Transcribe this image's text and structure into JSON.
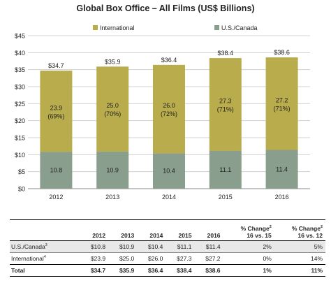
{
  "colors": {
    "international": "#b8ac4c",
    "us_canada": "#8a9e8e",
    "grid": "#d0d0d0"
  },
  "chart_data": {
    "type": "bar",
    "stacked": true,
    "title": "Global Box Office – All Films (US$ Billions)",
    "categories": [
      "2012",
      "2013",
      "2014",
      "2015",
      "2016"
    ],
    "series": [
      {
        "name": "U.S./Canada",
        "values": [
          10.8,
          10.9,
          10.4,
          11.1,
          11.4
        ],
        "labels": [
          "10.8",
          "10.9",
          "10.4",
          "11.1",
          "11.4"
        ]
      },
      {
        "name": "International",
        "values": [
          23.9,
          25.0,
          26.0,
          27.3,
          27.2
        ],
        "labels": [
          [
            "23.9",
            "(69%)"
          ],
          [
            "25.0",
            "(70%)"
          ],
          [
            "26.0",
            "(72%)"
          ],
          [
            "27.3",
            "(71%)"
          ],
          [
            "27.2",
            "(71%)"
          ]
        ]
      }
    ],
    "totals": [
      "$34.7",
      "$35.9",
      "$36.4",
      "$38.4",
      "$38.6"
    ],
    "total_values": [
      34.7,
      35.9,
      36.4,
      38.4,
      38.6
    ],
    "y_ticks": [
      "$0",
      "$5",
      "$10",
      "$15",
      "$20",
      "$25",
      "$30",
      "$35",
      "$40",
      "$45"
    ],
    "ylim": [
      0,
      45
    ],
    "grid": true,
    "legend_position": "top"
  },
  "table": {
    "headers": [
      "",
      "2012",
      "2013",
      "2014",
      "2015",
      "2016"
    ],
    "change_headers": [
      {
        "line1": "% Change",
        "sup": "2",
        "line2": "16 vs. 15"
      },
      {
        "line1": "% Change",
        "sup": "2",
        "line2": "16 vs. 12"
      }
    ],
    "rows": [
      {
        "label": "U.S./Canada",
        "sup": "3",
        "cells": [
          "$10.8",
          "$10.9",
          "$10.4",
          "$11.1",
          "$11.4",
          "2%",
          "5%"
        ]
      },
      {
        "label": "International",
        "sup": "4",
        "cells": [
          "$23.9",
          "$25.0",
          "$26.0",
          "$27.3",
          "$27.2",
          "0%",
          "14%"
        ]
      },
      {
        "label": "Total",
        "sup": "",
        "cells": [
          "$34.7",
          "$35.9",
          "$36.4",
          "$38.4",
          "$38.6",
          "1%",
          "11%"
        ]
      }
    ]
  }
}
